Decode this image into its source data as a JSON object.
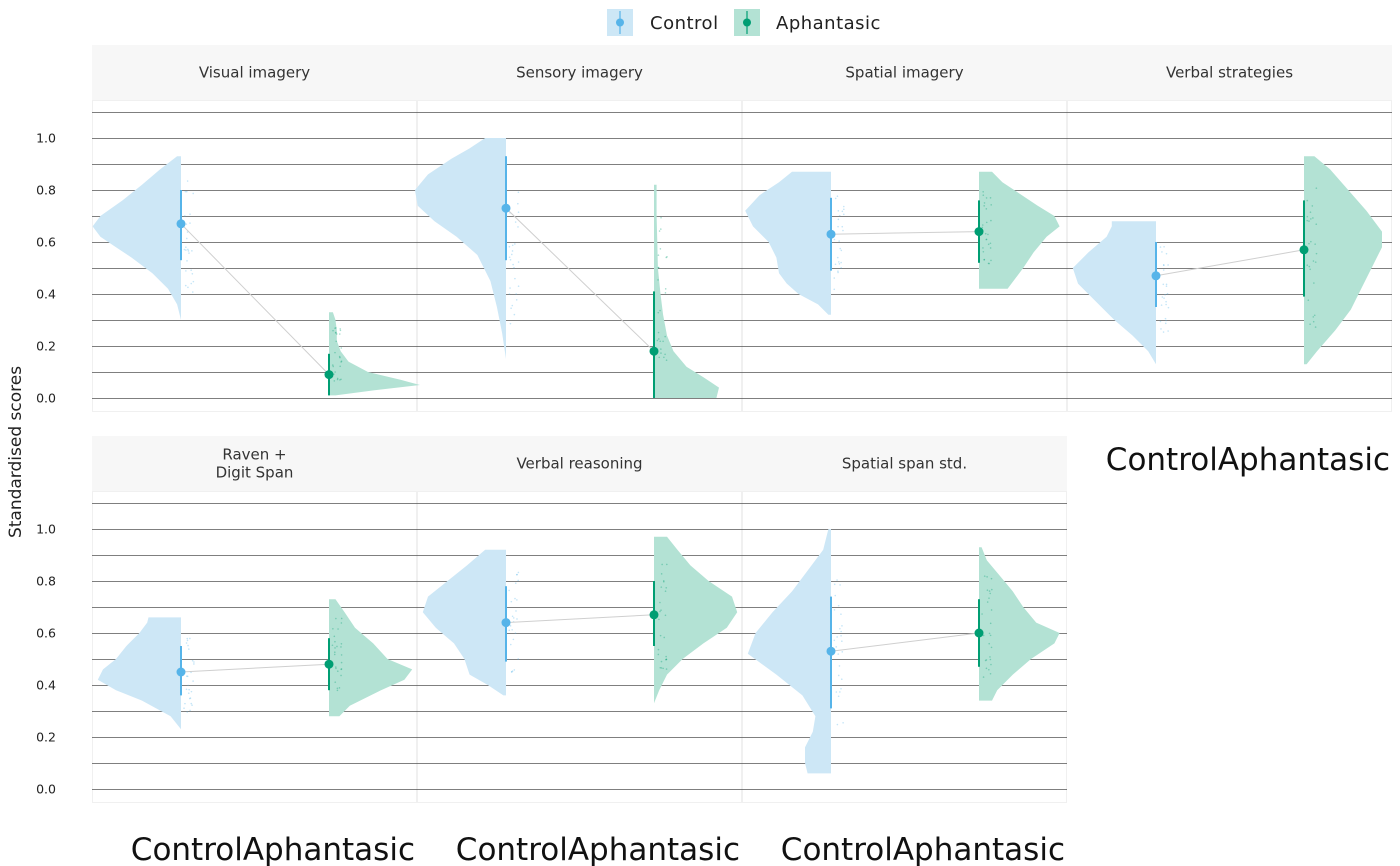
{
  "chart_data": {
    "type": "raincloud",
    "ylabel": "Standardised scores",
    "ylim": [
      0,
      1.1
    ],
    "y_ticks": [
      0.0,
      0.2,
      0.4,
      0.6,
      0.8,
      1.0
    ],
    "y_tick_labels": [
      "0.0",
      "0.2",
      "0.4",
      "0.6",
      "0.8",
      "1.0"
    ],
    "groups": [
      "Control",
      "Aphantasic"
    ],
    "legend": {
      "position": "top",
      "entries": [
        "Control",
        "Aphantasic"
      ]
    },
    "colors": {
      "Control": "#56B4E9",
      "Aphantasic": "#009E73",
      "Control_fill": "#cde7f6",
      "Aphantasic_fill": "#b3e2d4"
    },
    "grid": true,
    "panels": [
      {
        "title": "Visual imagery",
        "x_axis_text": "",
        "control": {
          "mean": 0.67,
          "lo": 0.53,
          "hi": 0.8,
          "range": [
            0.3,
            0.93
          ],
          "density": [
            [
              0.3,
              0.0
            ],
            [
              0.36,
              0.03
            ],
            [
              0.42,
              0.1
            ],
            [
              0.48,
              0.22
            ],
            [
              0.54,
              0.38
            ],
            [
              0.58,
              0.5
            ],
            [
              0.62,
              0.62
            ],
            [
              0.66,
              0.68
            ],
            [
              0.7,
              0.62
            ],
            [
              0.76,
              0.45
            ],
            [
              0.82,
              0.3
            ],
            [
              0.88,
              0.16
            ],
            [
              0.93,
              0.03
            ]
          ]
        },
        "aphantasic": {
          "mean": 0.09,
          "lo": 0.01,
          "hi": 0.17,
          "range": [
            0.01,
            0.33
          ],
          "density": [
            [
              0.01,
              0.05
            ],
            [
              0.03,
              0.35
            ],
            [
              0.05,
              0.7
            ],
            [
              0.07,
              0.55
            ],
            [
              0.1,
              0.3
            ],
            [
              0.14,
              0.15
            ],
            [
              0.18,
              0.09
            ],
            [
              0.22,
              0.06
            ],
            [
              0.26,
              0.06
            ],
            [
              0.3,
              0.05
            ],
            [
              0.33,
              0.03
            ]
          ]
        }
      },
      {
        "title": "Sensory imagery",
        "x_axis_text": "",
        "control": {
          "mean": 0.73,
          "lo": 0.53,
          "hi": 0.93,
          "range": [
            0.15,
            1.0
          ],
          "density": [
            [
              0.15,
              0.0
            ],
            [
              0.25,
              0.03
            ],
            [
              0.35,
              0.07
            ],
            [
              0.45,
              0.12
            ],
            [
              0.55,
              0.22
            ],
            [
              0.62,
              0.38
            ],
            [
              0.68,
              0.55
            ],
            [
              0.74,
              0.68
            ],
            [
              0.8,
              0.7
            ],
            [
              0.86,
              0.6
            ],
            [
              0.92,
              0.42
            ],
            [
              0.96,
              0.28
            ],
            [
              1.0,
              0.16
            ]
          ]
        },
        "aphantasic": {
          "mean": 0.18,
          "lo": 0.0,
          "hi": 0.41,
          "range": [
            0.0,
            0.82
          ],
          "density": [
            [
              0.0,
              0.48
            ],
            [
              0.04,
              0.5
            ],
            [
              0.08,
              0.38
            ],
            [
              0.12,
              0.25
            ],
            [
              0.18,
              0.15
            ],
            [
              0.24,
              0.1
            ],
            [
              0.32,
              0.07
            ],
            [
              0.4,
              0.05
            ],
            [
              0.5,
              0.03
            ],
            [
              0.6,
              0.025
            ],
            [
              0.7,
              0.02
            ],
            [
              0.82,
              0.02
            ]
          ]
        }
      },
      {
        "title": "Spatial imagery",
        "x_axis_text": "",
        "control": {
          "mean": 0.63,
          "lo": 0.49,
          "hi": 0.77,
          "range": [
            0.32,
            0.87
          ],
          "density": [
            [
              0.32,
              0.02
            ],
            [
              0.36,
              0.1
            ],
            [
              0.4,
              0.25
            ],
            [
              0.44,
              0.34
            ],
            [
              0.48,
              0.4
            ],
            [
              0.54,
              0.42
            ],
            [
              0.6,
              0.48
            ],
            [
              0.66,
              0.6
            ],
            [
              0.72,
              0.66
            ],
            [
              0.78,
              0.55
            ],
            [
              0.83,
              0.4
            ],
            [
              0.87,
              0.3
            ]
          ]
        },
        "aphantasic": {
          "mean": 0.64,
          "lo": 0.52,
          "hi": 0.76,
          "range": [
            0.42,
            0.87
          ],
          "density": [
            [
              0.42,
              0.22
            ],
            [
              0.46,
              0.28
            ],
            [
              0.5,
              0.34
            ],
            [
              0.56,
              0.42
            ],
            [
              0.62,
              0.52
            ],
            [
              0.66,
              0.62
            ],
            [
              0.7,
              0.58
            ],
            [
              0.74,
              0.45
            ],
            [
              0.79,
              0.3
            ],
            [
              0.83,
              0.18
            ],
            [
              0.87,
              0.1
            ]
          ]
        }
      },
      {
        "title": "Verbal strategies",
        "x_axis_text": "ControlAphantasic",
        "control": {
          "mean": 0.47,
          "lo": 0.35,
          "hi": 0.6,
          "range": [
            0.13,
            0.68
          ],
          "density": [
            [
              0.13,
              0.0
            ],
            [
              0.18,
              0.06
            ],
            [
              0.24,
              0.18
            ],
            [
              0.3,
              0.32
            ],
            [
              0.38,
              0.48
            ],
            [
              0.44,
              0.6
            ],
            [
              0.5,
              0.64
            ],
            [
              0.56,
              0.52
            ],
            [
              0.62,
              0.38
            ],
            [
              0.66,
              0.34
            ],
            [
              0.68,
              0.34
            ]
          ]
        },
        "aphantasic": {
          "mean": 0.57,
          "lo": 0.39,
          "hi": 0.76,
          "range": [
            0.13,
            0.93
          ],
          "density": [
            [
              0.13,
              0.02
            ],
            [
              0.18,
              0.1
            ],
            [
              0.26,
              0.24
            ],
            [
              0.34,
              0.36
            ],
            [
              0.42,
              0.44
            ],
            [
              0.5,
              0.52
            ],
            [
              0.58,
              0.6
            ],
            [
              0.64,
              0.6
            ],
            [
              0.72,
              0.48
            ],
            [
              0.8,
              0.34
            ],
            [
              0.88,
              0.2
            ],
            [
              0.93,
              0.08
            ]
          ]
        }
      },
      {
        "title": "Raven +\nDigit Span",
        "x_axis_text": "ControlAphantasic",
        "control": {
          "mean": 0.45,
          "lo": 0.36,
          "hi": 0.55,
          "range": [
            0.23,
            0.66
          ],
          "density": [
            [
              0.23,
              0.0
            ],
            [
              0.28,
              0.08
            ],
            [
              0.34,
              0.3
            ],
            [
              0.38,
              0.5
            ],
            [
              0.42,
              0.64
            ],
            [
              0.46,
              0.6
            ],
            [
              0.5,
              0.5
            ],
            [
              0.55,
              0.42
            ],
            [
              0.6,
              0.32
            ],
            [
              0.64,
              0.26
            ],
            [
              0.66,
              0.25
            ]
          ]
        },
        "aphantasic": {
          "mean": 0.48,
          "lo": 0.38,
          "hi": 0.58,
          "range": [
            0.28,
            0.73
          ],
          "density": [
            [
              0.28,
              0.08
            ],
            [
              0.32,
              0.16
            ],
            [
              0.38,
              0.4
            ],
            [
              0.42,
              0.58
            ],
            [
              0.46,
              0.64
            ],
            [
              0.5,
              0.45
            ],
            [
              0.56,
              0.34
            ],
            [
              0.62,
              0.2
            ],
            [
              0.68,
              0.12
            ],
            [
              0.73,
              0.05
            ]
          ]
        }
      },
      {
        "title": "Verbal reasoning",
        "x_axis_text": "ControlAphantasic",
        "control": {
          "mean": 0.64,
          "lo": 0.49,
          "hi": 0.78,
          "range": [
            0.36,
            0.92
          ],
          "density": [
            [
              0.36,
              0.02
            ],
            [
              0.4,
              0.14
            ],
            [
              0.44,
              0.28
            ],
            [
              0.5,
              0.32
            ],
            [
              0.56,
              0.4
            ],
            [
              0.62,
              0.54
            ],
            [
              0.68,
              0.64
            ],
            [
              0.74,
              0.6
            ],
            [
              0.8,
              0.45
            ],
            [
              0.86,
              0.3
            ],
            [
              0.92,
              0.16
            ]
          ]
        },
        "aphantasic": {
          "mean": 0.67,
          "lo": 0.55,
          "hi": 0.8,
          "range": [
            0.33,
            0.97
          ],
          "density": [
            [
              0.33,
              0.0
            ],
            [
              0.38,
              0.04
            ],
            [
              0.44,
              0.1
            ],
            [
              0.5,
              0.22
            ],
            [
              0.56,
              0.38
            ],
            [
              0.62,
              0.56
            ],
            [
              0.68,
              0.64
            ],
            [
              0.74,
              0.6
            ],
            [
              0.8,
              0.42
            ],
            [
              0.86,
              0.28
            ],
            [
              0.92,
              0.18
            ],
            [
              0.97,
              0.1
            ]
          ]
        }
      },
      {
        "title": "Spatial span std.",
        "x_axis_text": "ControlAphantasic",
        "control": {
          "mean": 0.53,
          "lo": 0.31,
          "hi": 0.74,
          "range": [
            0.06,
            1.0
          ],
          "density": [
            [
              0.06,
              0.18
            ],
            [
              0.1,
              0.2
            ],
            [
              0.16,
              0.2
            ],
            [
              0.22,
              0.14
            ],
            [
              0.28,
              0.12
            ],
            [
              0.36,
              0.22
            ],
            [
              0.44,
              0.42
            ],
            [
              0.52,
              0.64
            ],
            [
              0.6,
              0.58
            ],
            [
              0.68,
              0.45
            ],
            [
              0.76,
              0.3
            ],
            [
              0.84,
              0.18
            ],
            [
              0.92,
              0.06
            ],
            [
              1.0,
              0.02
            ]
          ]
        },
        "aphantasic": {
          "mean": 0.6,
          "lo": 0.47,
          "hi": 0.73,
          "range": [
            0.34,
            0.93
          ],
          "density": [
            [
              0.34,
              0.1
            ],
            [
              0.38,
              0.14
            ],
            [
              0.44,
              0.26
            ],
            [
              0.5,
              0.4
            ],
            [
              0.56,
              0.58
            ],
            [
              0.6,
              0.62
            ],
            [
              0.64,
              0.44
            ],
            [
              0.7,
              0.34
            ],
            [
              0.76,
              0.26
            ],
            [
              0.82,
              0.16
            ],
            [
              0.88,
              0.06
            ],
            [
              0.93,
              0.02
            ]
          ]
        }
      }
    ]
  }
}
